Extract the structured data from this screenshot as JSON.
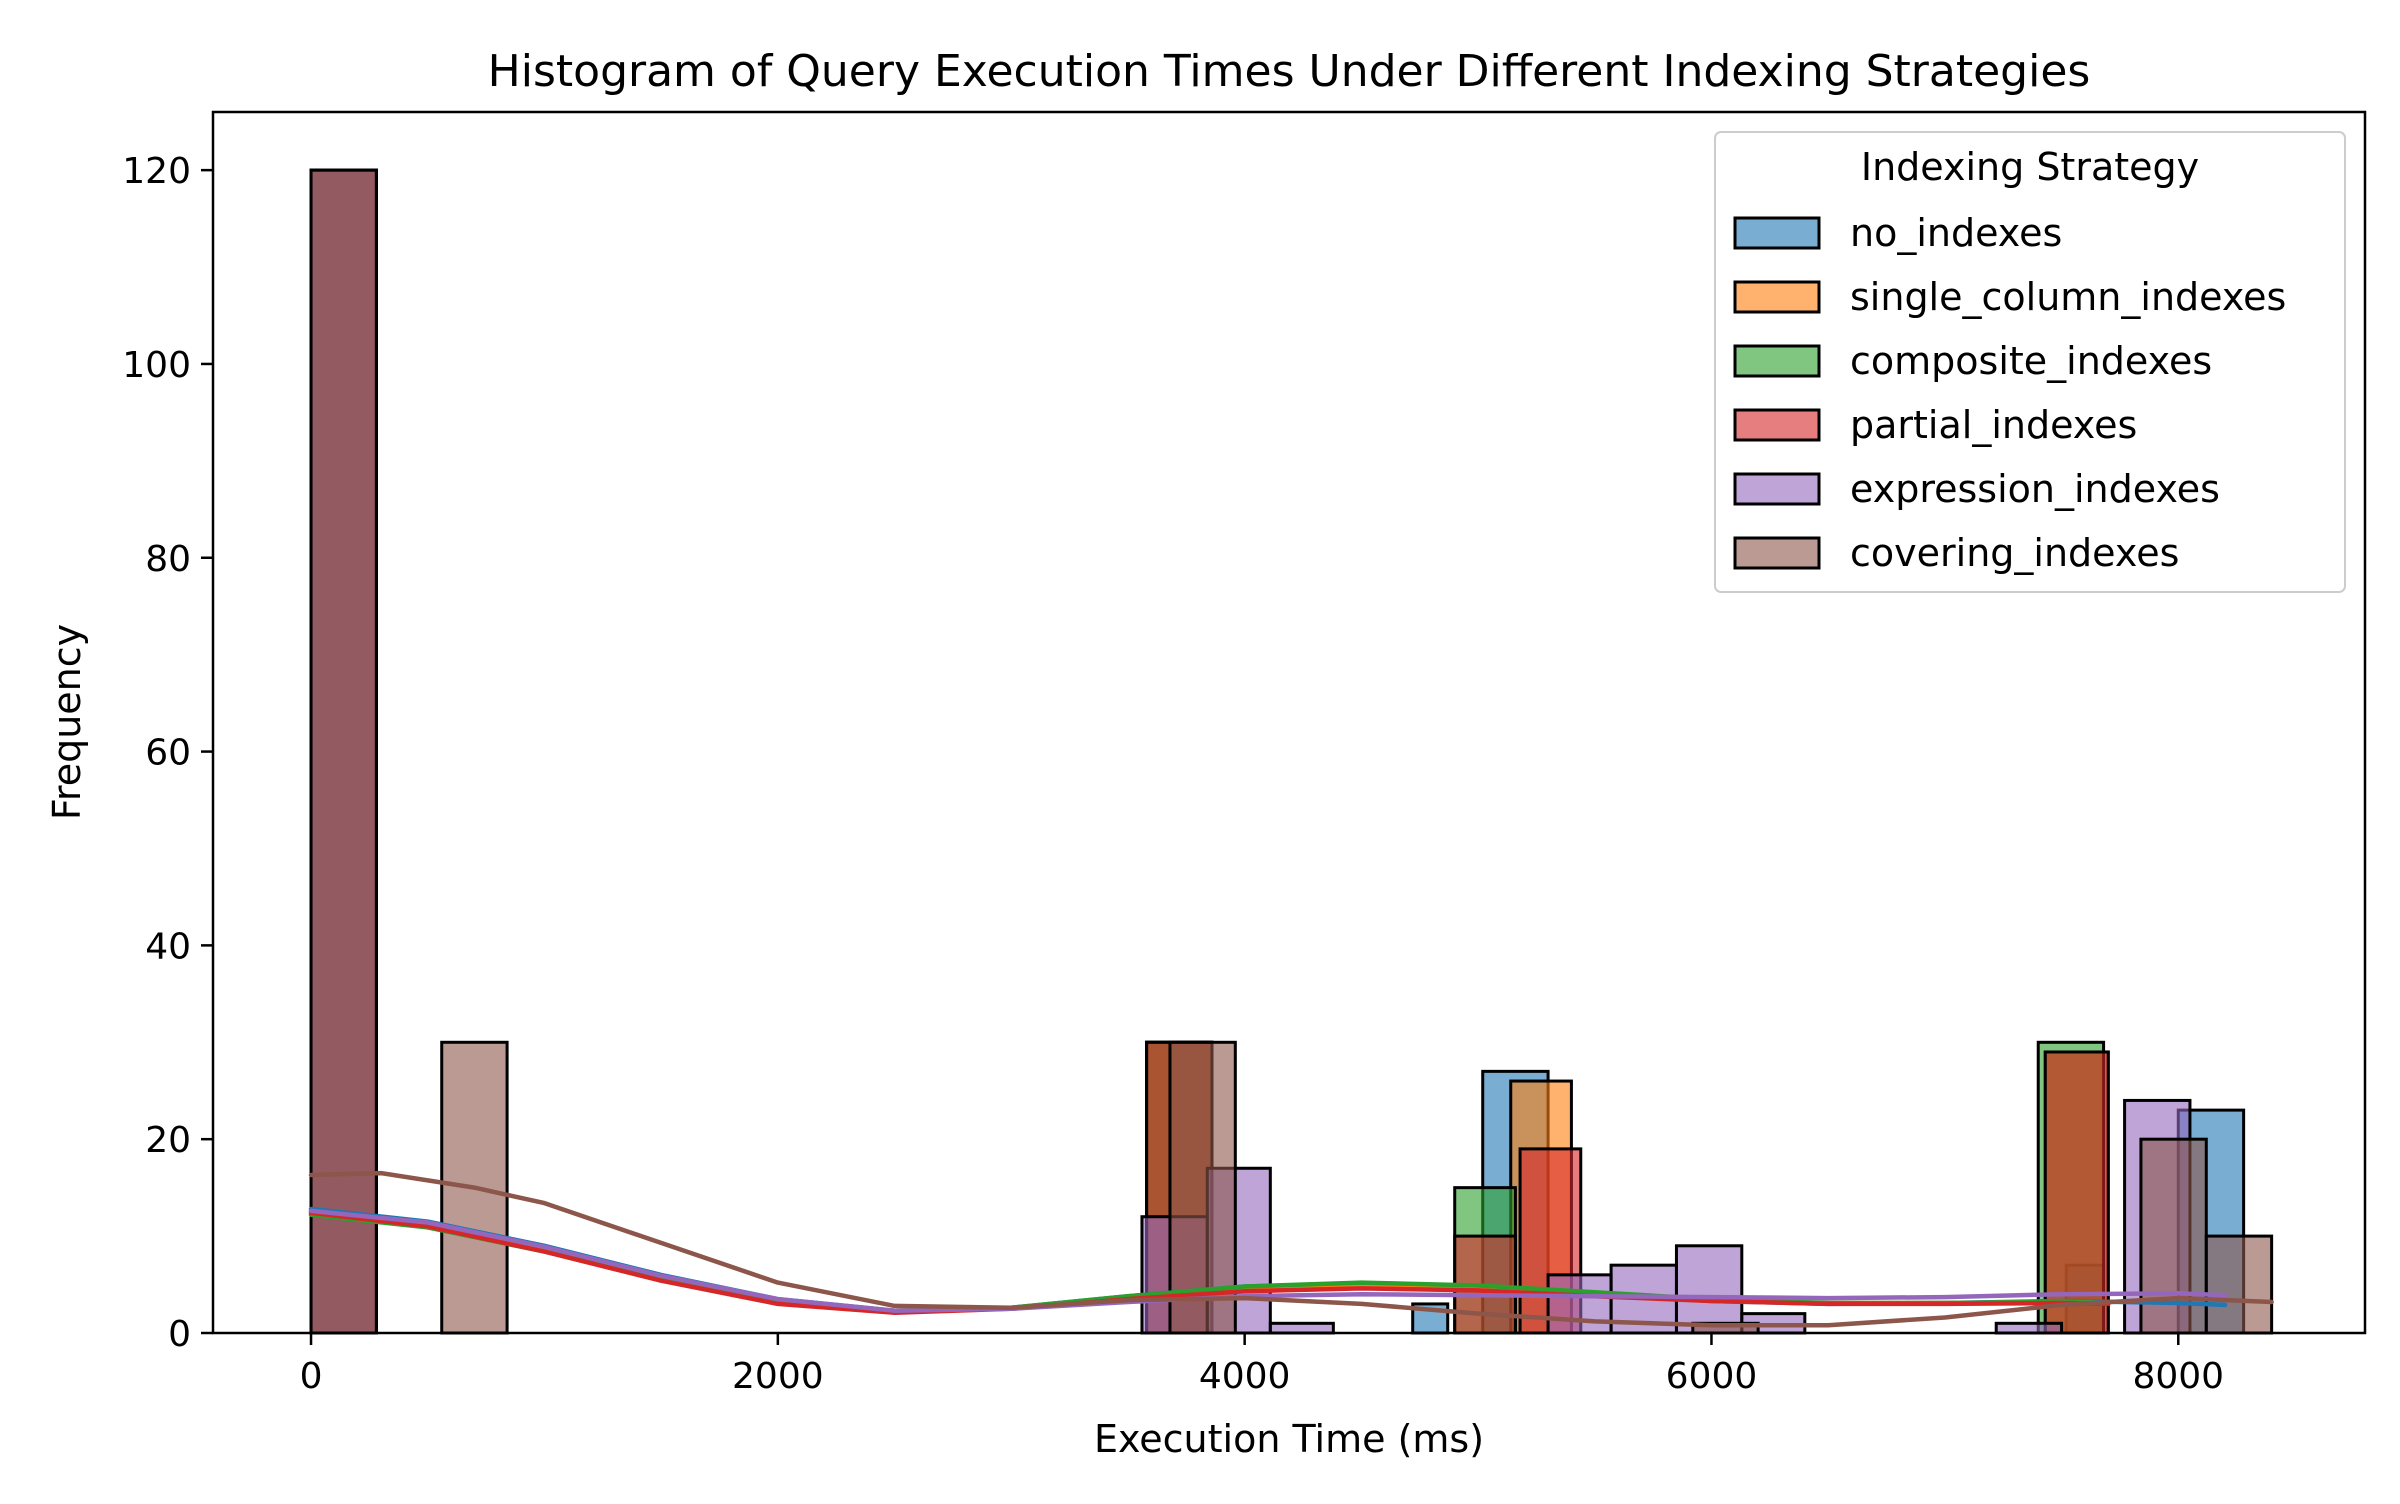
{
  "chart_data": {
    "type": "histogram",
    "title": "Histogram of Query Execution Times Under Different Indexing Strategies",
    "xlabel": "Execution Time (ms)",
    "ylabel": "Frequency",
    "xlim": [
      -420,
      8800
    ],
    "ylim": [
      0,
      126
    ],
    "xticks": [
      0,
      2000,
      4000,
      6000,
      8000
    ],
    "xtick_labels": [
      "0",
      "2000",
      "4000",
      "6000",
      "8000"
    ],
    "yticks": [
      0,
      20,
      40,
      60,
      80,
      100,
      120
    ],
    "ytick_labels": [
      "0",
      "20",
      "40",
      "60",
      "80",
      "100",
      "120"
    ],
    "grid": false,
    "legend": {
      "title": "Indexing Strategy",
      "placement": "top-right"
    },
    "series": [
      {
        "name": "no_indexes",
        "color": "#1f77b4",
        "bins": [
          {
            "x0": 0,
            "x1": 280,
            "count": 120
          },
          {
            "x0": 3580,
            "x1": 3860,
            "count": 30
          },
          {
            "x0": 4720,
            "x1": 4870,
            "count": 3
          },
          {
            "x0": 5020,
            "x1": 5300,
            "count": 27
          },
          {
            "x0": 7520,
            "x1": 7680,
            "count": 7
          },
          {
            "x0": 8000,
            "x1": 8280,
            "count": 23
          }
        ],
        "kde": [
          [
            0,
            12.8
          ],
          [
            500,
            11.5
          ],
          [
            1000,
            9
          ],
          [
            1500,
            6
          ],
          [
            2000,
            3.5
          ],
          [
            2500,
            2.3
          ],
          [
            3000,
            2.6
          ],
          [
            3500,
            3.8
          ],
          [
            4000,
            4.8
          ],
          [
            4500,
            5.1
          ],
          [
            5000,
            4.7
          ],
          [
            5500,
            4
          ],
          [
            6000,
            3.3
          ],
          [
            6500,
            3
          ],
          [
            7000,
            3.1
          ],
          [
            7500,
            3.3
          ],
          [
            8000,
            3.1
          ],
          [
            8200,
            2.9
          ]
        ]
      },
      {
        "name": "single_column_indexes",
        "color": "#ff7f0e",
        "bins": [
          {
            "x0": 0,
            "x1": 280,
            "count": 120
          },
          {
            "x0": 3580,
            "x1": 3860,
            "count": 30
          },
          {
            "x0": 5140,
            "x1": 5400,
            "count": 26
          },
          {
            "x0": 7430,
            "x1": 7700,
            "count": 29
          }
        ],
        "kde": [
          [
            0,
            12.5
          ],
          [
            500,
            11.2
          ],
          [
            1000,
            8.7
          ],
          [
            1500,
            5.8
          ],
          [
            2000,
            3.4
          ],
          [
            2500,
            2.3
          ],
          [
            3000,
            2.6
          ],
          [
            3500,
            3.7
          ],
          [
            4000,
            4.7
          ],
          [
            4500,
            5
          ],
          [
            5000,
            4.6
          ],
          [
            5500,
            4
          ],
          [
            6000,
            3.4
          ],
          [
            6500,
            3.1
          ],
          [
            7000,
            3.1
          ],
          [
            7500,
            3.2
          ],
          [
            7700,
            3.1
          ]
        ]
      },
      {
        "name": "composite_indexes",
        "color": "#2ca02c",
        "bins": [
          {
            "x0": 0,
            "x1": 280,
            "count": 120
          },
          {
            "x0": 3580,
            "x1": 3860,
            "count": 30
          },
          {
            "x0": 4900,
            "x1": 5160,
            "count": 15
          },
          {
            "x0": 7400,
            "x1": 7680,
            "count": 30
          }
        ],
        "kde": [
          [
            0,
            12.2
          ],
          [
            500,
            10.9
          ],
          [
            1000,
            8.4
          ],
          [
            1500,
            5.6
          ],
          [
            2000,
            3.2
          ],
          [
            2500,
            2.2
          ],
          [
            3000,
            2.6
          ],
          [
            3500,
            3.8
          ],
          [
            4000,
            4.8
          ],
          [
            4500,
            5.2
          ],
          [
            5000,
            4.9
          ],
          [
            5500,
            4.2
          ],
          [
            6000,
            3.5
          ],
          [
            6500,
            3.1
          ],
          [
            7000,
            3.1
          ],
          [
            7500,
            3.2
          ],
          [
            7700,
            3.1
          ]
        ]
      },
      {
        "name": "partial_indexes",
        "color": "#d62728",
        "bins": [
          {
            "x0": 0,
            "x1": 280,
            "count": 120
          },
          {
            "x0": 3580,
            "x1": 3860,
            "count": 30
          },
          {
            "x0": 4900,
            "x1": 5160,
            "count": 10
          },
          {
            "x0": 5180,
            "x1": 5440,
            "count": 19
          },
          {
            "x0": 7430,
            "x1": 7700,
            "count": 29
          }
        ],
        "kde": [
          [
            0,
            12.4
          ],
          [
            500,
            11
          ],
          [
            1000,
            8.4
          ],
          [
            1500,
            5.4
          ],
          [
            2000,
            3
          ],
          [
            2500,
            2.1
          ],
          [
            3000,
            2.5
          ],
          [
            3500,
            3.5
          ],
          [
            4000,
            4.3
          ],
          [
            4500,
            4.6
          ],
          [
            5000,
            4.4
          ],
          [
            5500,
            3.8
          ],
          [
            6000,
            3.3
          ],
          [
            6500,
            3
          ],
          [
            7000,
            3
          ],
          [
            7500,
            3.1
          ],
          [
            7700,
            3
          ]
        ]
      },
      {
        "name": "expression_indexes",
        "color": "#9467bd",
        "bins": [
          {
            "x0": 0,
            "x1": 280,
            "count": 120
          },
          {
            "x0": 3560,
            "x1": 3840,
            "count": 12
          },
          {
            "x0": 3840,
            "x1": 4110,
            "count": 17
          },
          {
            "x0": 4110,
            "x1": 4380,
            "count": 1
          },
          {
            "x0": 5300,
            "x1": 5570,
            "count": 6
          },
          {
            "x0": 5570,
            "x1": 5850,
            "count": 7
          },
          {
            "x0": 5850,
            "x1": 6130,
            "count": 9
          },
          {
            "x0": 6130,
            "x1": 6400,
            "count": 2
          },
          {
            "x0": 7220,
            "x1": 7500,
            "count": 1
          },
          {
            "x0": 7770,
            "x1": 8050,
            "count": 24
          }
        ],
        "kde": [
          [
            0,
            12.6
          ],
          [
            500,
            11.4
          ],
          [
            1000,
            8.9
          ],
          [
            1500,
            5.9
          ],
          [
            2000,
            3.5
          ],
          [
            2500,
            2.3
          ],
          [
            3000,
            2.5
          ],
          [
            3500,
            3.2
          ],
          [
            4000,
            3.8
          ],
          [
            4500,
            4
          ],
          [
            5000,
            3.9
          ],
          [
            5500,
            3.8
          ],
          [
            6000,
            3.7
          ],
          [
            6500,
            3.6
          ],
          [
            7000,
            3.7
          ],
          [
            7500,
            4
          ],
          [
            8000,
            4.1
          ],
          [
            8200,
            3.9
          ]
        ]
      },
      {
        "name": "covering_indexes",
        "color": "#8c564b",
        "bins": [
          {
            "x0": 0,
            "x1": 280,
            "count": 120
          },
          {
            "x0": 560,
            "x1": 840,
            "count": 30
          },
          {
            "x0": 3680,
            "x1": 3960,
            "count": 30
          },
          {
            "x0": 5920,
            "x1": 6200,
            "count": 1
          },
          {
            "x0": 7840,
            "x1": 8120,
            "count": 20
          },
          {
            "x0": 8120,
            "x1": 8400,
            "count": 10
          }
        ],
        "kde": [
          [
            0,
            16.3
          ],
          [
            300,
            16.5
          ],
          [
            700,
            15
          ],
          [
            1000,
            13.4
          ],
          [
            1500,
            9.3
          ],
          [
            2000,
            5.2
          ],
          [
            2500,
            2.8
          ],
          [
            3000,
            2.6
          ],
          [
            3500,
            3.4
          ],
          [
            4000,
            3.6
          ],
          [
            4500,
            3
          ],
          [
            5000,
            2
          ],
          [
            5500,
            1.2
          ],
          [
            6000,
            0.8
          ],
          [
            6500,
            0.8
          ],
          [
            7000,
            1.6
          ],
          [
            7500,
            2.9
          ],
          [
            8000,
            3.6
          ],
          [
            8400,
            3.2
          ]
        ]
      }
    ]
  }
}
